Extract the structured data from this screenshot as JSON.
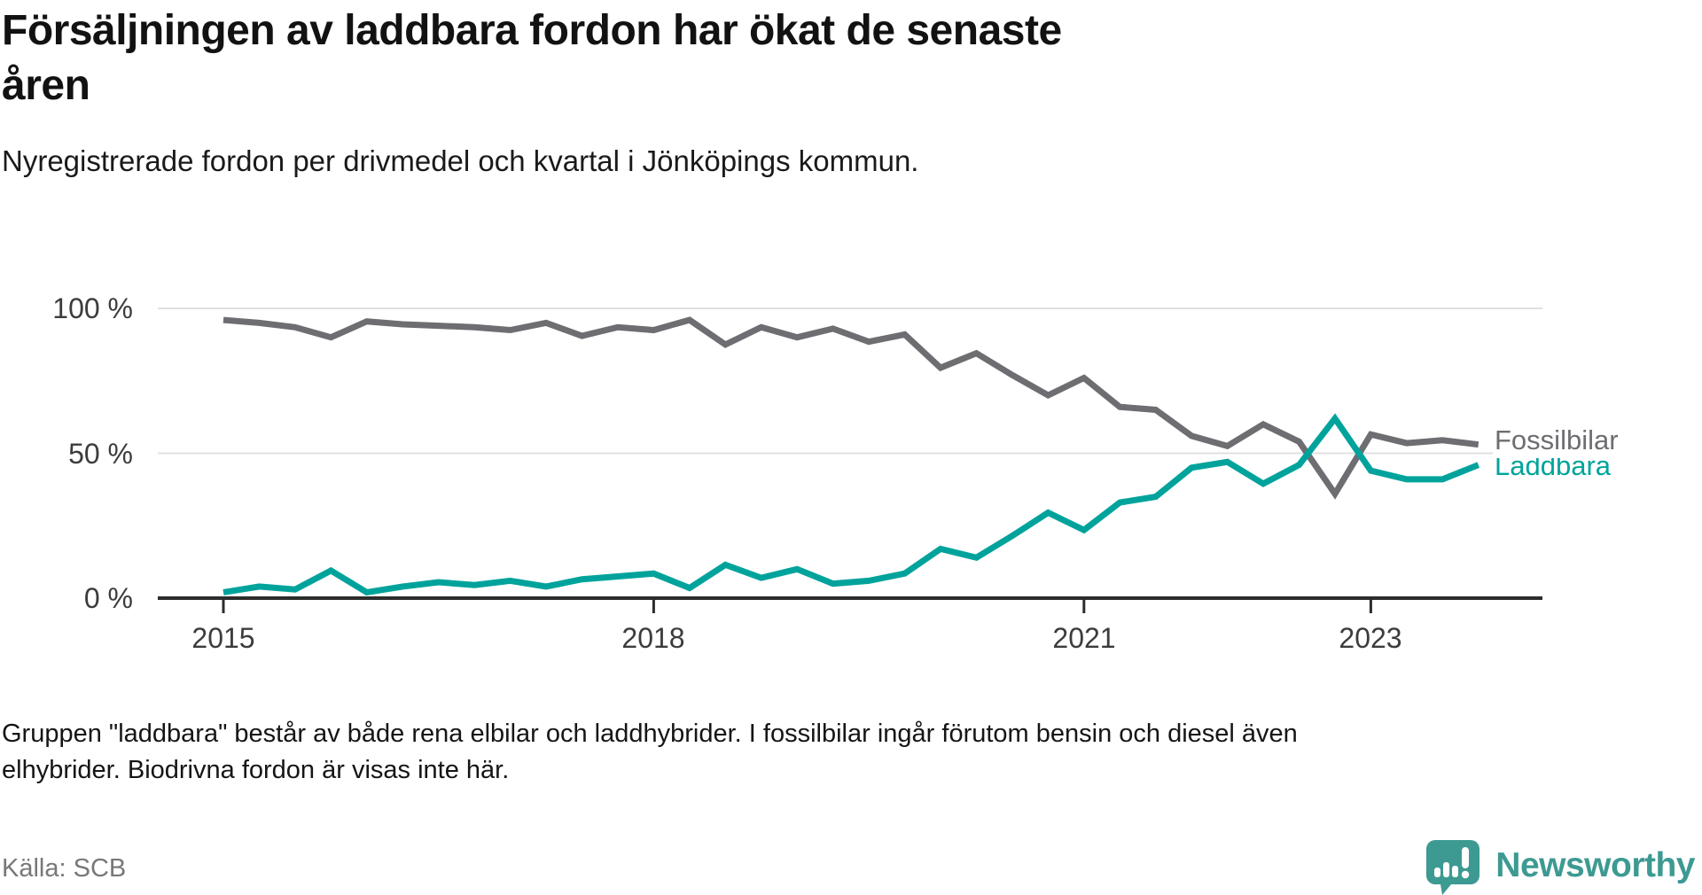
{
  "header": {
    "title_line1": "Försäljningen av laddbara fordon har ökat de senaste",
    "title_line2": "åren",
    "subtitle": "Nyregistrerade fordon per drivmedel och kvartal i Jönköpings kommun."
  },
  "chart_data": {
    "type": "line",
    "title": "Försäljningen av laddbara fordon har ökat de senaste åren",
    "subtitle": "Nyregistrerade fordon per drivmedel och kvartal i Jönköpings kommun.",
    "x_unit": "kvartal",
    "x": [
      "2015Q1",
      "2015Q2",
      "2015Q3",
      "2015Q4",
      "2016Q1",
      "2016Q2",
      "2016Q3",
      "2016Q4",
      "2017Q1",
      "2017Q2",
      "2017Q3",
      "2017Q4",
      "2018Q1",
      "2018Q2",
      "2018Q3",
      "2018Q4",
      "2019Q1",
      "2019Q2",
      "2019Q3",
      "2019Q4",
      "2020Q1",
      "2020Q2",
      "2020Q3",
      "2020Q4",
      "2021Q1",
      "2021Q2",
      "2021Q3",
      "2021Q4",
      "2022Q1",
      "2022Q2",
      "2022Q3",
      "2022Q4",
      "2023Q1",
      "2023Q2",
      "2023Q3",
      "2023Q4"
    ],
    "series": [
      {
        "name": "Fossilbilar",
        "color": "#6d6d72",
        "unit": "%",
        "values": [
          96,
          95,
          93.5,
          90,
          95.5,
          94.5,
          94,
          93.5,
          92.5,
          95,
          90.5,
          93.5,
          92.5,
          96,
          87.5,
          93.5,
          90,
          93,
          88.5,
          91,
          79.5,
          84.5,
          77,
          70,
          76,
          66,
          65,
          56,
          52.5,
          60,
          54,
          36,
          56.5,
          53.5,
          54.5,
          53
        ]
      },
      {
        "name": "Laddbara",
        "color": "#00a39b",
        "unit": "%",
        "values": [
          2,
          4,
          3,
          9.5,
          2,
          4,
          5.5,
          4.5,
          6,
          4,
          6.5,
          7.5,
          8.5,
          3.5,
          11.5,
          7,
          10,
          5,
          6,
          8.5,
          17,
          14,
          21.5,
          29.5,
          23.5,
          33,
          35,
          45,
          47,
          39.5,
          46,
          62,
          44,
          41,
          41,
          46
        ]
      }
    ],
    "ylim": [
      0,
      100
    ],
    "yticks": [
      {
        "label": "100 %",
        "value": 100
      },
      {
        "label": "50 %",
        "value": 50
      },
      {
        "label": "0 %",
        "value": 0
      }
    ],
    "xticks": [
      {
        "label": "2015",
        "index": 0
      },
      {
        "label": "2018",
        "index": 12
      },
      {
        "label": "2021",
        "index": 24
      },
      {
        "label": "2023",
        "index": 32
      }
    ],
    "grid": "horizontal",
    "legend_position": "right-of-line-end",
    "axis_color": "#2d2d2d",
    "grid_color": "#e1e1e1"
  },
  "footer": {
    "note_line1": "Gruppen \"laddbara\" består av både rena elbilar och laddhybrider. I fossilbilar ingår förutom bensin och diesel även",
    "note_line2": "elhybrider. Biodrivna fordon är visas inte här.",
    "source": "Källa: SCB",
    "brand": "Newsworthy"
  },
  "colors": {
    "accent_teal": "#00a39b",
    "series_gray": "#6d6d72",
    "logo_teal": "#3d9a92",
    "text_dark": "#121212",
    "text_gray": "#787878"
  }
}
